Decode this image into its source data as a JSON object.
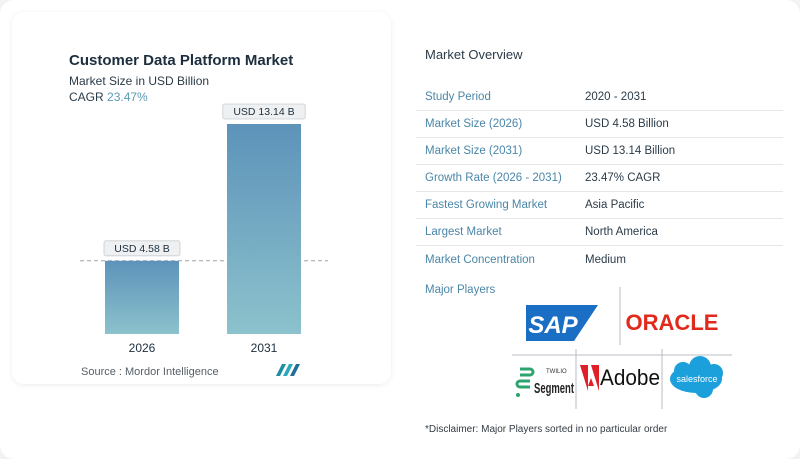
{
  "chart_data": {
    "type": "bar",
    "title": "Customer Data Platform Market",
    "subtitle": "Market Size in USD Billion",
    "cagr_label": "CAGR",
    "cagr_value": "23.47%",
    "categories": [
      "2026",
      "2031"
    ],
    "values": [
      4.58,
      13.14
    ],
    "data_labels": [
      "USD 4.58 B",
      "USD 13.14 B"
    ],
    "ylim": [
      0,
      13.14
    ],
    "colors": {
      "bar_top": "#5d93b9",
      "bar_bottom": "#8cc2cc",
      "dashed_line": "#9aa5ae"
    }
  },
  "source": "Source :  Mordor Intelligence",
  "overview": {
    "title": "Market Overview",
    "rows": [
      {
        "label": "Study Period",
        "value": "2020 - 2031"
      },
      {
        "label": "Market Size (2026)",
        "value": "USD 4.58 Billion"
      },
      {
        "label": "Market Size (2031)",
        "value": "USD 13.14 Billion"
      },
      {
        "label": "Growth Rate (2026 - 2031)",
        "value": "23.47% CAGR"
      },
      {
        "label": "Fastest Growing Market",
        "value": "Asia Pacific"
      },
      {
        "label": "Largest Market",
        "value": "North America"
      },
      {
        "label": "Market Concentration",
        "value": "Medium"
      }
    ]
  },
  "players": {
    "label": "Major Players",
    "logos": [
      "SAP",
      "ORACLE",
      "Twilio Segment",
      "Adobe",
      "salesforce"
    ],
    "twilio_small": "TWILIO",
    "segment_text": "Segment"
  },
  "disclaimer": "*Disclaimer: Major Players sorted in no particular order"
}
